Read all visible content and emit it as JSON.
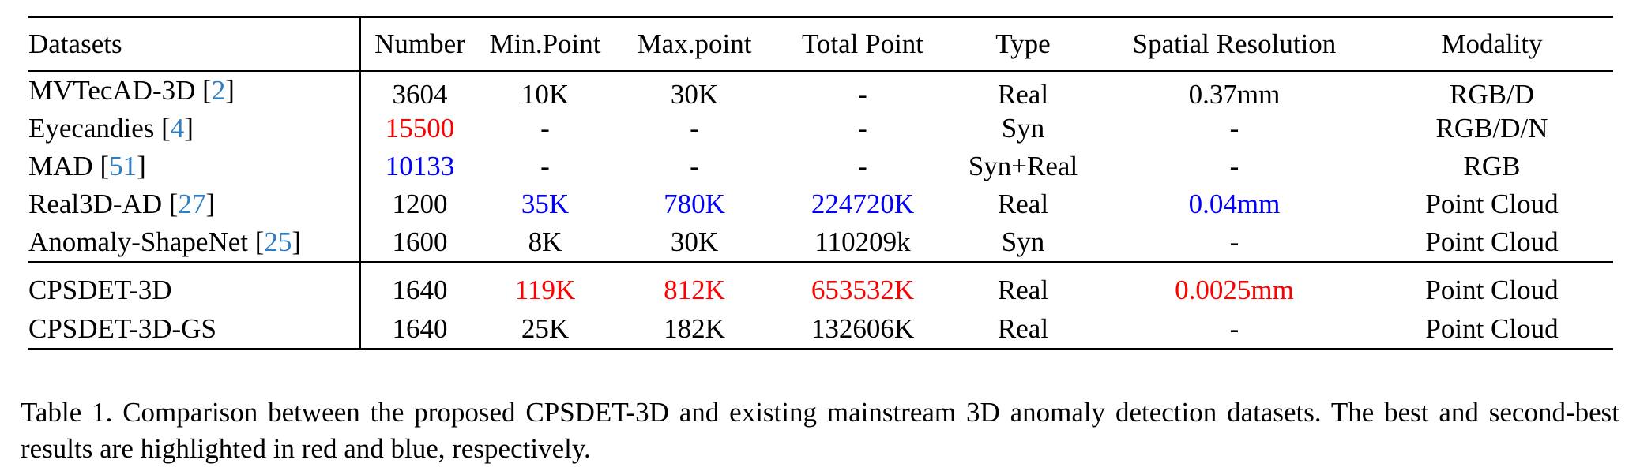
{
  "table": {
    "columns": [
      "Datasets",
      "Number",
      "Min.Point",
      "Max.point",
      "Total Point",
      "Type",
      "Spatial Resolution",
      "Modality"
    ],
    "group1": [
      {
        "name": "MVTecAD-3D",
        "cite": "2",
        "number": "3604",
        "min": "10K",
        "max": "30K",
        "total": "-",
        "type": "Real",
        "res": "0.37mm",
        "modality": "RGB/D"
      },
      {
        "name": "Eyecandies",
        "cite": "4",
        "number": "15500",
        "min": "-",
        "max": "-",
        "total": "-",
        "type": "Syn",
        "res": "-",
        "modality": "RGB/D/N"
      },
      {
        "name": "MAD",
        "cite": "51",
        "number": "10133",
        "min": "-",
        "max": "-",
        "total": "-",
        "type": "Syn+Real",
        "res": "-",
        "modality": "RGB"
      },
      {
        "name": "Real3D-AD",
        "cite": "27",
        "number": "1200",
        "min": "35K",
        "max": "780K",
        "total": "224720K",
        "type": "Real",
        "res": "0.04mm",
        "modality": "Point Cloud"
      },
      {
        "name": "Anomaly-ShapeNet",
        "cite": "25",
        "number": "1600",
        "min": "8K",
        "max": "30K",
        "total": "110209k",
        "type": "Syn",
        "res": "-",
        "modality": "Point Cloud"
      }
    ],
    "group2": [
      {
        "name": "CPSDET-3D",
        "number": "1640",
        "min": "119K",
        "max": "812K",
        "total": "653532K",
        "type": "Real",
        "res": "0.0025mm",
        "modality": "Point Cloud"
      },
      {
        "name": "CPSDET-3D-GS",
        "number": "1640",
        "min": "25K",
        "max": "182K",
        "total": "132606K",
        "type": "Real",
        "res": "-",
        "modality": "Point Cloud"
      }
    ]
  },
  "highlight_colors": {
    "best": "#ff0000",
    "second": "#0000ff",
    "citation": "#2f7ec4"
  },
  "caption": "Table 1. Comparison between the proposed CPSDET-3D and existing mainstream 3D anomaly detection datasets. The best and second-best results are highlighted in red and blue, respectively."
}
